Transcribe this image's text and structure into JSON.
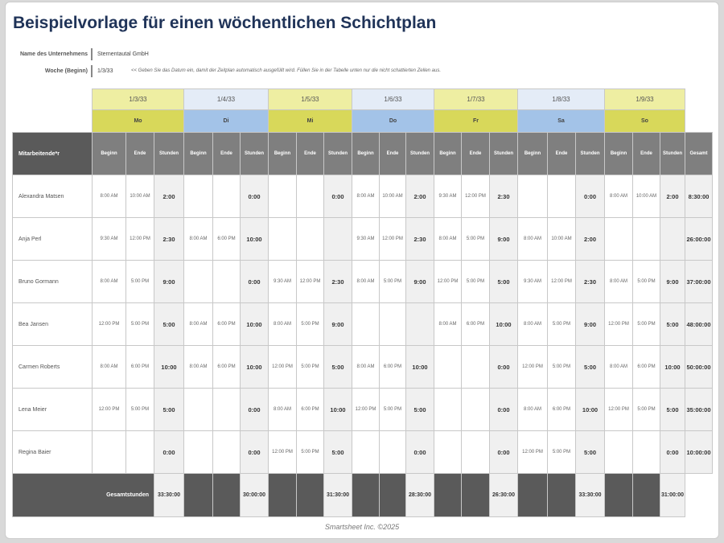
{
  "title": "Beispielvorlage für einen wöchentlichen Schichtplan",
  "company": {
    "label": "Name des Unternehmens",
    "value": "Sternentautal GmbH"
  },
  "week": {
    "label": "Woche (Beginn)",
    "value": "1/3/33",
    "hint": "<< Geben Sie das Datum ein, damit der Zeitplan automatisch ausgefüllt wird. Füllen Sie in der Tabelle unten nur die nicht schattierten Zellen aus."
  },
  "colors": {
    "yellow_light": "#eeeea2",
    "yellow": "#d8d85a",
    "blue_light": "#e4ecf7",
    "blue": "#a3c3e8",
    "header": "#7f7f7f",
    "dark": "#5a5a5a"
  },
  "days": [
    {
      "date": "1/3/33",
      "name": "Mo"
    },
    {
      "date": "1/4/33",
      "name": "Di"
    },
    {
      "date": "1/5/33",
      "name": "Mi"
    },
    {
      "date": "1/6/33",
      "name": "Do"
    },
    {
      "date": "1/7/33",
      "name": "Fr"
    },
    {
      "date": "1/8/33",
      "name": "Sa"
    },
    {
      "date": "1/9/33",
      "name": "So"
    }
  ],
  "headers": {
    "employee": "Mitarbeitende*r",
    "begin": "Beginn",
    "end": "Ende",
    "hours": "Stunden",
    "total": "Gesamt"
  },
  "employees": [
    {
      "name": "Alexandra Matsen",
      "total": "8:30:00",
      "shifts": [
        [
          "8:00 AM",
          "10:00 AM",
          "2:00"
        ],
        [
          "",
          "",
          "0:00"
        ],
        [
          "",
          "",
          "0:00"
        ],
        [
          "8:00 AM",
          "10:00 AM",
          "2:00"
        ],
        [
          "9:30 AM",
          "12:00 PM",
          "2:30"
        ],
        [
          "",
          "",
          "0:00"
        ],
        [
          "8:00 AM",
          "10:00 AM",
          "2:00"
        ]
      ]
    },
    {
      "name": "Anja Perl",
      "total": "26:00:00",
      "shifts": [
        [
          "9:30 AM",
          "12:00 PM",
          "2:30"
        ],
        [
          "8:00 AM",
          "6:00 PM",
          "10:00"
        ],
        [
          "",
          "",
          ""
        ],
        [
          "9:30 AM",
          "12:00 PM",
          "2:30"
        ],
        [
          "8:00 AM",
          "5:00 PM",
          "9:00"
        ],
        [
          "8:00 AM",
          "10:00 AM",
          "2:00"
        ],
        [
          "",
          "",
          ""
        ]
      ]
    },
    {
      "name": "Bruno Gormann",
      "total": "37:00:00",
      "shifts": [
        [
          "8:00 AM",
          "5:00 PM",
          "9:00"
        ],
        [
          "",
          "",
          "0:00"
        ],
        [
          "9:30 AM",
          "12:00 PM",
          "2:30"
        ],
        [
          "8:00 AM",
          "5:00 PM",
          "9:00"
        ],
        [
          "12:00 PM",
          "5:00 PM",
          "5:00"
        ],
        [
          "9:30 AM",
          "12:00 PM",
          "2:30"
        ],
        [
          "8:00 AM",
          "5:00 PM",
          "9:00"
        ]
      ]
    },
    {
      "name": "Bea Jansen",
      "total": "48:00:00",
      "shifts": [
        [
          "12:00 PM",
          "5:00 PM",
          "5:00"
        ],
        [
          "8:00 AM",
          "6:00 PM",
          "10:00"
        ],
        [
          "8:00 AM",
          "5:00 PM",
          "9:00"
        ],
        [
          "",
          "",
          ""
        ],
        [
          "8:00 AM",
          "6:00 PM",
          "10:00"
        ],
        [
          "8:00 AM",
          "5:00 PM",
          "9:00"
        ],
        [
          "12:00 PM",
          "5:00 PM",
          "5:00"
        ]
      ]
    },
    {
      "name": "Carmen Roberts",
      "total": "50:00:00",
      "shifts": [
        [
          "8:00 AM",
          "6:00 PM",
          "10:00"
        ],
        [
          "8:00 AM",
          "6:00 PM",
          "10:00"
        ],
        [
          "12:00 PM",
          "5:00 PM",
          "5:00"
        ],
        [
          "8:00 AM",
          "6:00 PM",
          "10:00"
        ],
        [
          "",
          "",
          "0:00"
        ],
        [
          "12:00 PM",
          "5:00 PM",
          "5:00"
        ],
        [
          "8:00 AM",
          "6:00 PM",
          "10:00"
        ]
      ]
    },
    {
      "name": "Lena Meier",
      "total": "35:00:00",
      "shifts": [
        [
          "12:00 PM",
          "5:00 PM",
          "5:00"
        ],
        [
          "",
          "",
          "0:00"
        ],
        [
          "8:00 AM",
          "6:00 PM",
          "10:00"
        ],
        [
          "12:00 PM",
          "5:00 PM",
          "5:00"
        ],
        [
          "",
          "",
          "0:00"
        ],
        [
          "8:00 AM",
          "6:00 PM",
          "10:00"
        ],
        [
          "12:00 PM",
          "5:00 PM",
          "5:00"
        ]
      ]
    },
    {
      "name": "Regina Baier",
      "total": "10:00:00",
      "shifts": [
        [
          "",
          "",
          "0:00"
        ],
        [
          "",
          "",
          "0:00"
        ],
        [
          "12:00 PM",
          "5:00 PM",
          "5:00"
        ],
        [
          "",
          "",
          "0:00"
        ],
        [
          "",
          "",
          "0:00"
        ],
        [
          "12:00 PM",
          "5:00 PM",
          "5:00"
        ],
        [
          "",
          "",
          "0:00"
        ]
      ]
    }
  ],
  "summary": {
    "label": "Gesamtstunden",
    "day_totals": [
      "33:30:00",
      "30:00:00",
      "31:30:00",
      "28:30:00",
      "26:30:00",
      "33:30:00",
      "31:00:00"
    ]
  },
  "footer": "Smartsheet Inc. ©2025"
}
